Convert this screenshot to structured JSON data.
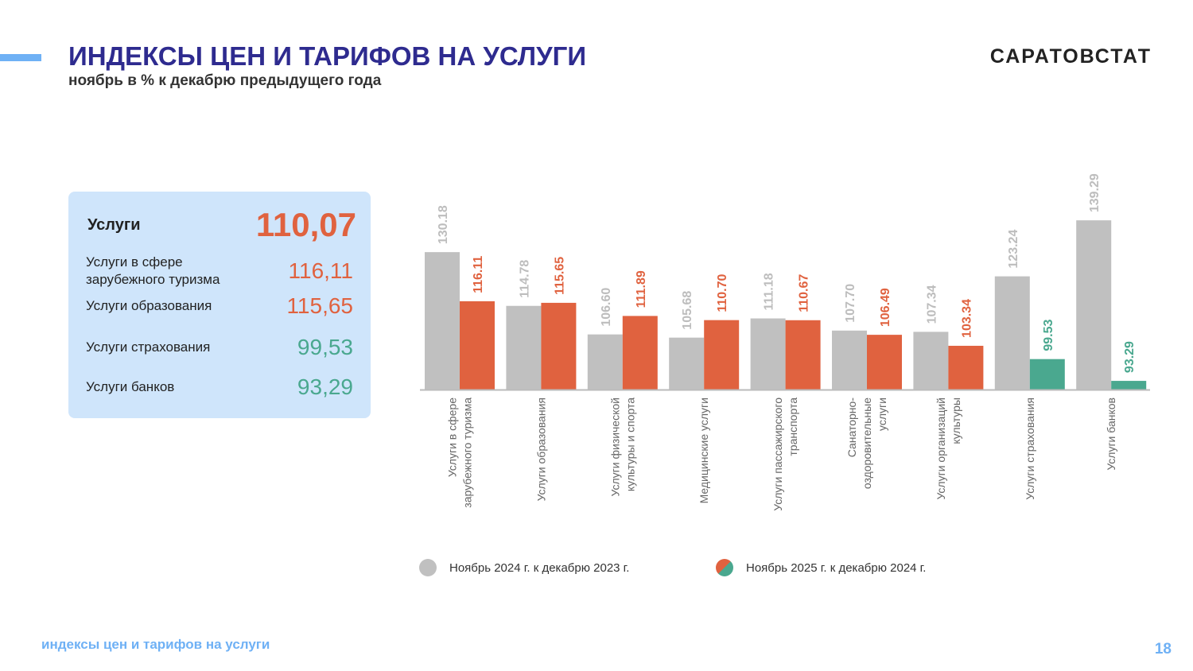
{
  "header": {
    "title": "ИНДЕКСЫ ЦЕН И ТАРИФОВ НА УСЛУГИ",
    "subtitle": "ноябрь в % к декабрю предыдущего года",
    "brand": "САРАТОВСТАТ"
  },
  "card": {
    "main_label": "Услуги",
    "main_value": "110,07",
    "items": [
      {
        "label": "Услуги в сфере\nзарубежного туризма",
        "value": "116,11",
        "color": "#e0623f"
      },
      {
        "label": "Услуги образования",
        "value": "115,65",
        "color": "#e0623f"
      },
      {
        "label": "Услуги страхования",
        "value": "99,53",
        "color": "#4aa88f"
      },
      {
        "label": "Услуги банков",
        "value": "93,29",
        "color": "#4aa88f"
      }
    ]
  },
  "chart_data": {
    "type": "bar",
    "categories": [
      [
        "Услуги в сфере",
        "зарубежного туризма"
      ],
      [
        "Услуги образования"
      ],
      [
        "Услуги физической",
        "культуры и спорта"
      ],
      [
        "Медицинские услуги"
      ],
      [
        "Услуги пассажирского",
        "транспорта"
      ],
      [
        "Санаторно-",
        "оздоровительные",
        "услуги"
      ],
      [
        "Услуги организаций",
        "культуры"
      ],
      [
        "Услуги страхования"
      ],
      [
        "Услуги банков"
      ]
    ],
    "series": [
      {
        "name": "Ноябрь 2024 г. к декабрю 2023 г.",
        "values": [
          130.18,
          114.78,
          106.6,
          105.68,
          111.18,
          107.7,
          107.34,
          123.24,
          139.29
        ],
        "color": "#c0c0c0"
      },
      {
        "name": "Ноябрь 2025 г. к декабрю 2024 г.",
        "values": [
          116.11,
          115.65,
          111.89,
          110.7,
          110.67,
          106.49,
          103.34,
          99.53,
          93.29
        ],
        "colors": {
          "above": "#e0623f",
          "below": "#4aa88f"
        }
      }
    ],
    "ylim": [
      90.8,
      145
    ],
    "legend": "bottom",
    "grid": false
  },
  "footer": {
    "text": "индексы цен и тарифов на услуги",
    "page": "18"
  }
}
